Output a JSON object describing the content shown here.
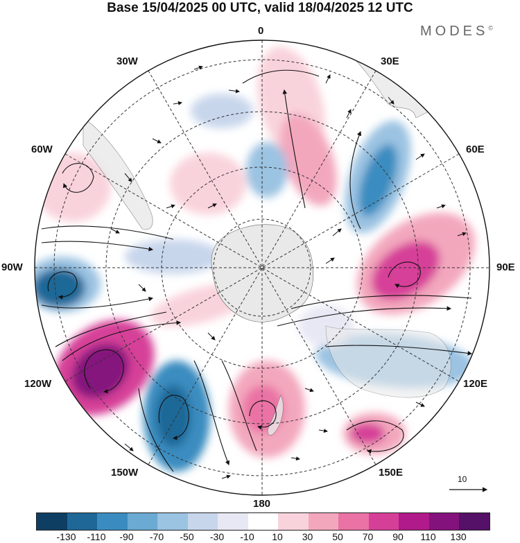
{
  "title": "Base 15/04/2025 00 UTC, valid 18/04/2025 12 UTC",
  "brand": {
    "text": "MODES",
    "mark": "©"
  },
  "longitude_labels": {
    "top": "0",
    "e30": "30E",
    "e60": "60E",
    "e90": "90E",
    "e120": "120E",
    "e150": "150E",
    "bottom": "180",
    "w150": "150W",
    "w120": "120W",
    "w90": "90W",
    "w60": "60W",
    "w30": "30W"
  },
  "vector_reference": {
    "value": "10"
  },
  "colorbar": {
    "colors": [
      "#0f3e63",
      "#1f6797",
      "#3a8cc0",
      "#6aaad3",
      "#9bc3e2",
      "#c8d6ec",
      "#e8e8f4",
      "#ffffff",
      "#f9d3dc",
      "#f3a7bd",
      "#ea72a4",
      "#d63f98",
      "#b11a8a",
      "#84127d",
      "#551068"
    ],
    "labels": [
      "-130",
      "-110",
      "-90",
      "-70",
      "-50",
      "-30",
      "-10",
      "10",
      "30",
      "50",
      "70",
      "90",
      "110",
      "130"
    ]
  },
  "anomaly_field": {
    "units": "",
    "positive_color": "#d63f98",
    "negative_color": "#1f6797"
  }
}
